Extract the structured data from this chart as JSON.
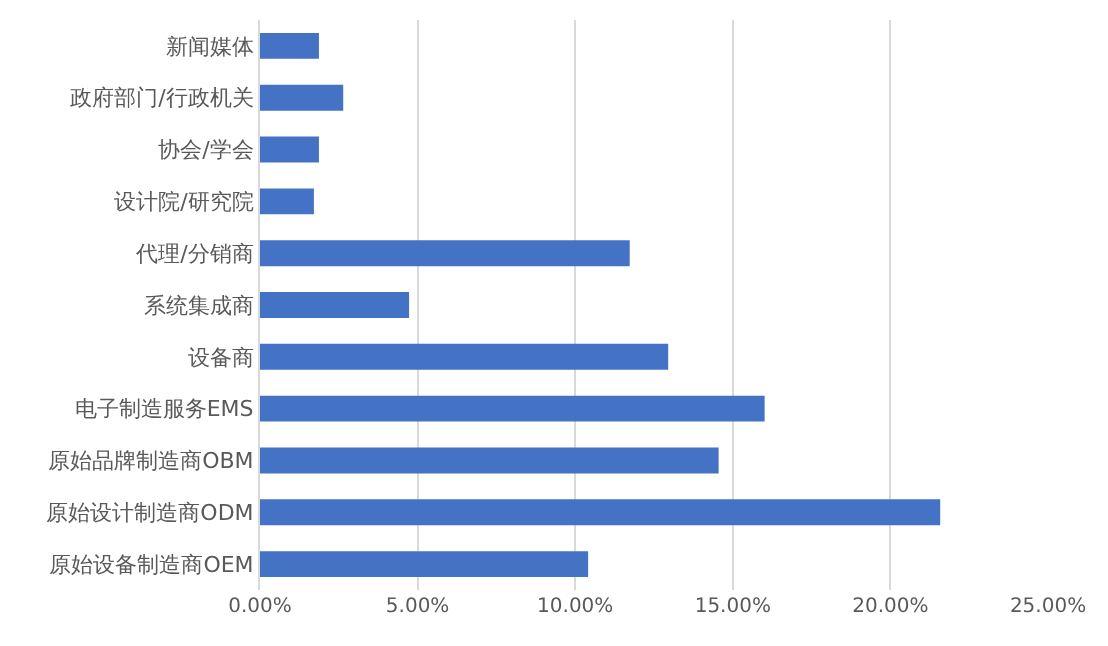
{
  "chart_data": {
    "type": "bar",
    "orientation": "horizontal",
    "categories": [
      "新闻媒体",
      "政府部门/行政机关",
      "协会/学会",
      "设计院/研究院",
      "代理/分销商",
      "系统集成商",
      "设备商",
      "电子制造服务EMS",
      "原始品牌制造商OBM",
      "原始设计制造商ODM",
      "原始设备制造商OEM"
    ],
    "values": [
      1.87,
      2.64,
      1.87,
      1.71,
      11.73,
      4.73,
      12.95,
      16.01,
      14.55,
      21.58,
      10.41
    ],
    "color": "#4472c4",
    "xlim": [
      0,
      25
    ],
    "xticks": [
      {
        "value": 0,
        "label": "0.00%"
      },
      {
        "value": 5,
        "label": "5.00%"
      },
      {
        "value": 10,
        "label": "10.00%"
      },
      {
        "value": 15,
        "label": "15.00%"
      },
      {
        "value": 20,
        "label": "20.00%"
      },
      {
        "value": 25,
        "label": "25.00%"
      }
    ],
    "grid": "x",
    "legend": false
  }
}
